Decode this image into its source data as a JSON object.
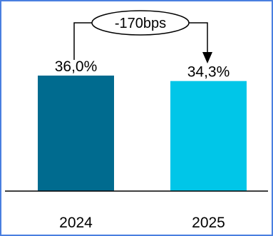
{
  "chart_data": {
    "type": "bar",
    "categories": [
      "2024",
      "2025"
    ],
    "values": [
      36.0,
      34.3
    ],
    "data_labels": [
      "36,0%",
      "34,3%"
    ],
    "bar_colors": [
      "#006b8f",
      "#00c6e8"
    ],
    "title": "",
    "xlabel": "",
    "ylabel": "",
    "ylim": [
      0,
      40
    ],
    "grid": false,
    "legend": "none",
    "annotation": {
      "text": "-170bps",
      "from_category": "2024",
      "to_category": "2025"
    }
  },
  "colors": {
    "frame_border": "#4a7fe0",
    "axis_line": "#000000",
    "text": "#000000"
  }
}
